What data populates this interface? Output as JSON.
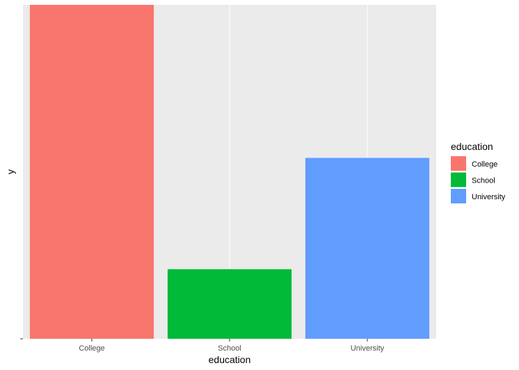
{
  "chart_data": {
    "type": "bar",
    "categories": [
      "College",
      "School",
      "University"
    ],
    "values": [
      48,
      10,
      26
    ],
    "colors": [
      "#F8766D",
      "#00BA38",
      "#619CFF"
    ],
    "xlabel": "education",
    "ylabel": "y",
    "ylim": [
      0,
      48
    ],
    "grid": true,
    "legend": {
      "title": "education",
      "position": "right",
      "items": [
        {
          "label": "College",
          "color": "#F8766D"
        },
        {
          "label": "School",
          "color": "#00BA38"
        },
        {
          "label": "University",
          "color": "#619CFF"
        }
      ]
    }
  }
}
